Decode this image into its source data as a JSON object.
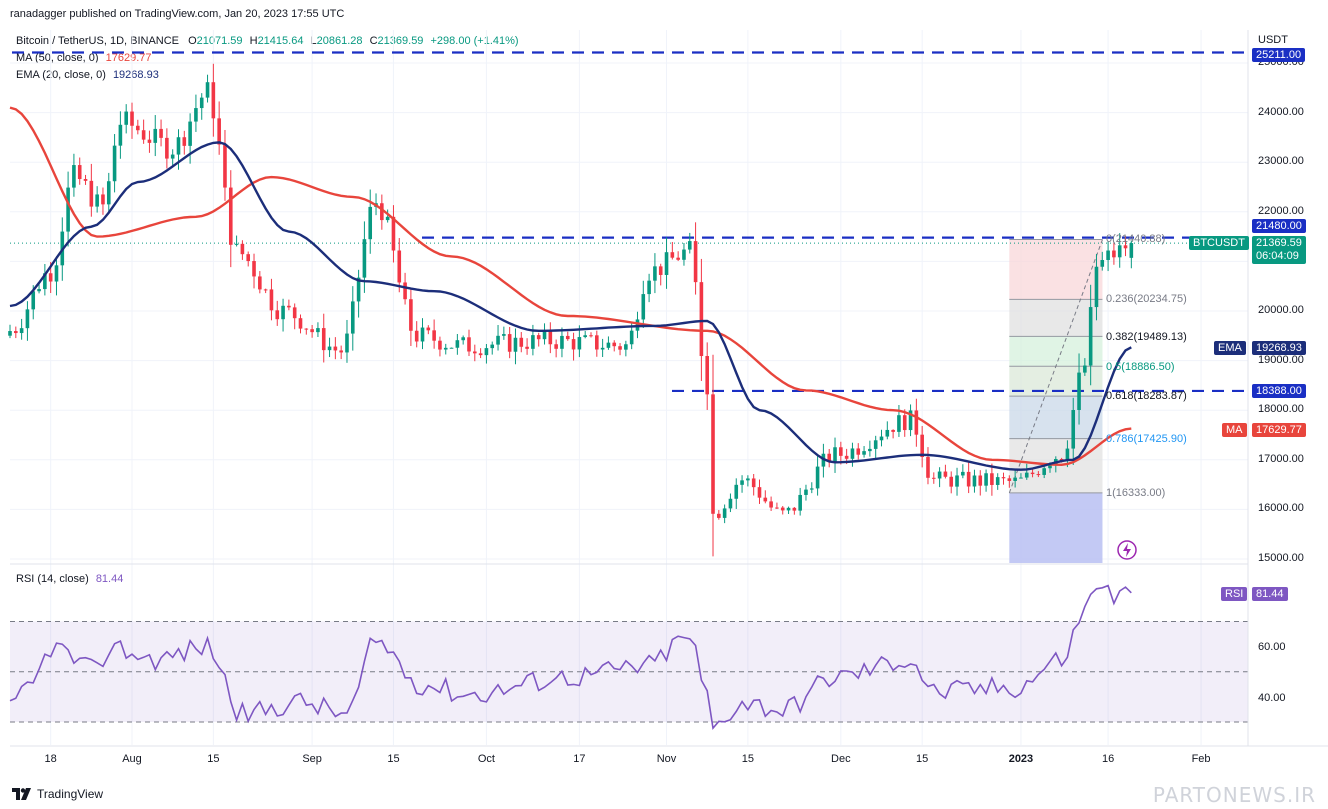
{
  "header": {
    "published": "ranadagger published on TradingView.com, Jan 20, 2023 17:55 UTC",
    "symbol": "Bitcoin / TetherUS, 1D, BINANCE",
    "open_label": "O",
    "open": "21071.59",
    "high_label": "H",
    "high": "21415.64",
    "low_label": "L",
    "low": "20861.28",
    "close_label": "C",
    "close": "21369.59",
    "change": "+298.00 (+1.41%)",
    "ma_legend_label": "MA (50, close, 0)",
    "ma_legend_value": "17629.77",
    "ema_legend_label": "EMA (20, close, 0)",
    "ema_legend_value": "19268.93"
  },
  "price_axis": {
    "currency": "USDT",
    "ticks": [
      "25000.00",
      "24000.00",
      "23000.00",
      "22000.00",
      "21000.00",
      "20000.00",
      "19000.00",
      "18000.00",
      "17000.00",
      "16000.00",
      "15000.00"
    ],
    "level_tags": {
      "top": "25211.00",
      "resistance": "21480.00",
      "support": "18388.00"
    },
    "symbol_tag": "BTCUSDT",
    "last_price": "21369.59",
    "countdown": "06:04:09",
    "ema_tag_label": "EMA",
    "ema_tag_value": "19268.93",
    "ma_tag_label": "MA",
    "ma_tag_value": "17629.77"
  },
  "fib": {
    "top_label": "0(21440.88)",
    "levels": [
      {
        "label": "0.236(20234.75)"
      },
      {
        "label": "0.382(19489.13)"
      },
      {
        "label": "0.5(18886.50)"
      },
      {
        "label": "0.618(18283.87)"
      },
      {
        "label": "0.786(17425.90)"
      },
      {
        "label": "1(16333.00)"
      }
    ]
  },
  "rsi": {
    "legend_label": "RSI (14, close)",
    "legend_value": "81.44",
    "tag_label": "RSI",
    "tag_value": "81.44",
    "ticks": [
      "60.00",
      "40.00"
    ]
  },
  "time_axis": {
    "labels": [
      "18",
      "Aug",
      "15",
      "Sep",
      "15",
      "Oct",
      "17",
      "Nov",
      "15",
      "Dec",
      "15",
      "2023",
      "16",
      "Feb"
    ]
  },
  "footer": {
    "brand": "TradingView",
    "watermark": "PARTONEWS.IR"
  },
  "colors": {
    "up": "#089981",
    "down": "#f23645",
    "ema": "#1c2e7a",
    "ma": "#e8453c",
    "dashed": "#1a2fc4",
    "rsi": "#7e57c2"
  },
  "chart_data": {
    "type": "candlestick",
    "title": "Bitcoin / TetherUS, 1D, BINANCE",
    "y_unit": "USDT",
    "ylim": [
      14900,
      25450
    ],
    "x_range": [
      "2022-07-11",
      "2023-02-08"
    ],
    "close_anchors": [
      {
        "date": "2022-07-11",
        "close": 19600
      },
      {
        "date": "2022-07-18",
        "close": 20800
      },
      {
        "date": "2022-07-22",
        "close": 22700
      },
      {
        "date": "2022-07-27",
        "close": 22100
      },
      {
        "date": "2022-07-30",
        "close": 23800
      },
      {
        "date": "2022-08-08",
        "close": 23300
      },
      {
        "date": "2022-08-14",
        "close": 24400
      },
      {
        "date": "2022-08-19",
        "close": 21200
      },
      {
        "date": "2022-08-27",
        "close": 20000
      },
      {
        "date": "2022-09-06",
        "close": 19200
      },
      {
        "date": "2022-09-12",
        "close": 22200
      },
      {
        "date": "2022-09-19",
        "close": 19500
      },
      {
        "date": "2022-09-27",
        "close": 19300
      },
      {
        "date": "2022-10-12",
        "close": 19400
      },
      {
        "date": "2022-10-25",
        "close": 19300
      },
      {
        "date": "2022-10-29",
        "close": 20800
      },
      {
        "date": "2022-11-05",
        "close": 21200
      },
      {
        "date": "2022-11-08",
        "close": 18500
      },
      {
        "date": "2022-11-09",
        "close": 15900
      },
      {
        "date": "2022-11-14",
        "close": 16600
      },
      {
        "date": "2022-11-21",
        "close": 15900
      },
      {
        "date": "2022-11-30",
        "close": 17100
      },
      {
        "date": "2022-12-13",
        "close": 17800
      },
      {
        "date": "2022-12-17",
        "close": 16600
      },
      {
        "date": "2022-12-31",
        "close": 16550
      },
      {
        "date": "2023-01-08",
        "close": 17100
      },
      {
        "date": "2023-01-12",
        "close": 18900
      },
      {
        "date": "2023-01-14",
        "close": 20900
      },
      {
        "date": "2023-01-17",
        "close": 21150
      },
      {
        "date": "2023-01-20",
        "close": 21369.59
      }
    ],
    "last_candle": {
      "date": "2023-01-20",
      "open": 21071.59,
      "high": 21415.64,
      "low": 20861.28,
      "close": 21369.59
    },
    "ema20_anchors": [
      {
        "date": "2022-07-11",
        "value": 20100
      },
      {
        "date": "2022-07-25",
        "value": 21700
      },
      {
        "date": "2022-08-02",
        "value": 22600
      },
      {
        "date": "2022-08-16",
        "value": 23400
      },
      {
        "date": "2022-08-28",
        "value": 21600
      },
      {
        "date": "2022-09-10",
        "value": 20600
      },
      {
        "date": "2022-09-22",
        "value": 20400
      },
      {
        "date": "2022-10-10",
        "value": 19600
      },
      {
        "date": "2022-10-30",
        "value": 19700
      },
      {
        "date": "2022-11-08",
        "value": 19800
      },
      {
        "date": "2022-11-17",
        "value": 18000
      },
      {
        "date": "2022-11-30",
        "value": 16950
      },
      {
        "date": "2022-12-15",
        "value": 17100
      },
      {
        "date": "2023-01-01",
        "value": 16800
      },
      {
        "date": "2023-01-10",
        "value": 17000
      },
      {
        "date": "2023-01-20",
        "value": 19268.93
      }
    ],
    "ma50_anchors": [
      {
        "date": "2022-07-11",
        "value": 24100
      },
      {
        "date": "2022-07-26",
        "value": 21500
      },
      {
        "date": "2022-08-12",
        "value": 21900
      },
      {
        "date": "2022-08-25",
        "value": 22700
      },
      {
        "date": "2022-09-08",
        "value": 22300
      },
      {
        "date": "2022-09-25",
        "value": 21100
      },
      {
        "date": "2022-10-15",
        "value": 19900
      },
      {
        "date": "2022-11-08",
        "value": 19600
      },
      {
        "date": "2022-11-25",
        "value": 18400
      },
      {
        "date": "2022-12-10",
        "value": 18000
      },
      {
        "date": "2022-12-27",
        "value": 17000
      },
      {
        "date": "2023-01-08",
        "value": 16900
      },
      {
        "date": "2023-01-20",
        "value": 17629.77
      }
    ],
    "horizontal_levels": [
      {
        "label": "25211.00",
        "value": 25211
      },
      {
        "label": "21480.00",
        "value": 21480
      },
      {
        "label": "18388.00",
        "value": 18388
      }
    ],
    "fibonacci": {
      "from": {
        "date": "2022-12-30",
        "value": 16333.0
      },
      "to": {
        "date": "2023-01-14",
        "value": 21440.88
      },
      "levels": [
        {
          "ratio": 0,
          "value": 21440.88
        },
        {
          "ratio": 0.236,
          "value": 20234.75
        },
        {
          "ratio": 0.382,
          "value": 19489.13
        },
        {
          "ratio": 0.5,
          "value": 18886.5
        },
        {
          "ratio": 0.618,
          "value": 18283.87
        },
        {
          "ratio": 0.786,
          "value": 17425.9
        },
        {
          "ratio": 1,
          "value": 16333.0
        }
      ]
    },
    "rsi": {
      "period": 14,
      "ylim": [
        24,
        95
      ],
      "bands": [
        30,
        50,
        70
      ],
      "anchors": [
        {
          "date": "2022-07-11",
          "value": 35
        },
        {
          "date": "2022-07-15",
          "value": 45
        },
        {
          "date": "2022-07-18",
          "value": 60
        },
        {
          "date": "2022-07-26",
          "value": 50
        },
        {
          "date": "2022-07-28",
          "value": 60
        },
        {
          "date": "2022-08-05",
          "value": 55
        },
        {
          "date": "2022-08-14",
          "value": 60
        },
        {
          "date": "2022-08-20",
          "value": 33
        },
        {
          "date": "2022-08-30",
          "value": 38
        },
        {
          "date": "2022-09-07",
          "value": 33
        },
        {
          "date": "2022-09-12",
          "value": 62
        },
        {
          "date": "2022-09-20",
          "value": 45
        },
        {
          "date": "2022-09-28",
          "value": 41
        },
        {
          "date": "2022-10-15",
          "value": 48
        },
        {
          "date": "2022-10-28",
          "value": 52
        },
        {
          "date": "2022-11-05",
          "value": 64
        },
        {
          "date": "2022-11-08",
          "value": 40
        },
        {
          "date": "2022-11-09",
          "value": 28
        },
        {
          "date": "2022-11-14",
          "value": 38
        },
        {
          "date": "2022-11-21",
          "value": 35
        },
        {
          "date": "2022-11-30",
          "value": 48
        },
        {
          "date": "2022-12-13",
          "value": 55
        },
        {
          "date": "2022-12-17",
          "value": 42
        },
        {
          "date": "2022-12-31",
          "value": 44
        },
        {
          "date": "2023-01-08",
          "value": 55
        },
        {
          "date": "2023-01-12",
          "value": 74
        },
        {
          "date": "2023-01-14",
          "value": 86
        },
        {
          "date": "2023-01-17",
          "value": 80
        },
        {
          "date": "2023-01-20",
          "value": 81.44
        }
      ]
    }
  }
}
